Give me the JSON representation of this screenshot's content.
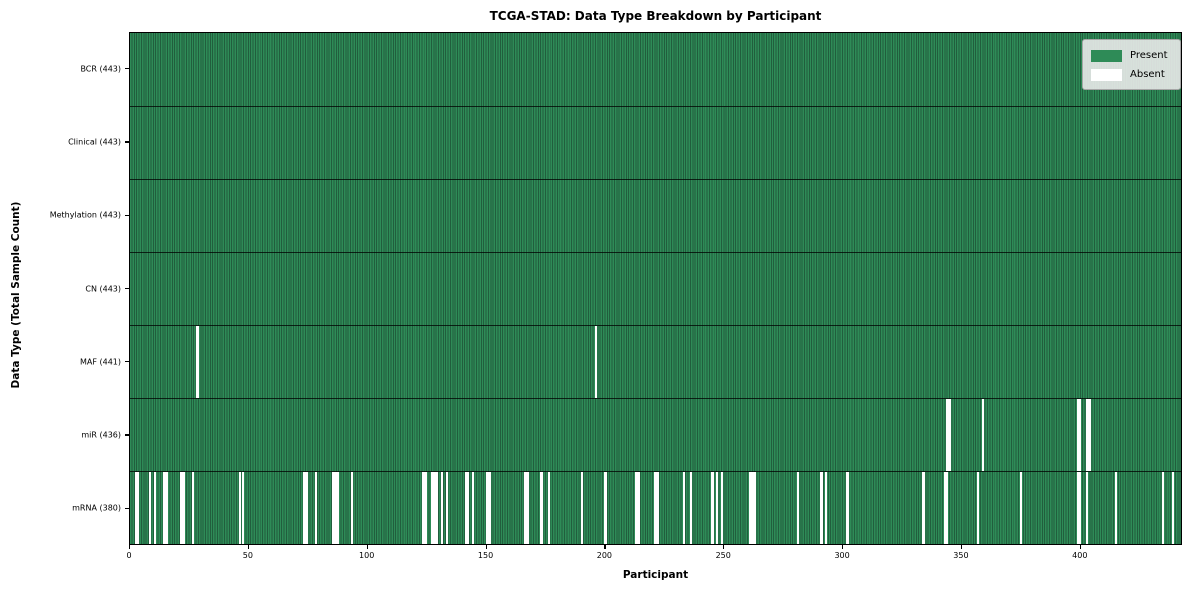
{
  "title": "TCGA-STAD: Data Type Breakdown by Participant",
  "xlabel": "Participant",
  "ylabel": "Data Type (Total Sample Count)",
  "legend": {
    "present_label": "Present",
    "absent_label": "Absent"
  },
  "colors": {
    "present": "#2e8b57",
    "present_cell_edge": "#215e3d",
    "absent": "#ffffff",
    "row_divider": "#10301c",
    "plot_border": "#000000",
    "legend_bg": "#eaeaea",
    "legend_border": "#a6a6a6"
  },
  "chart_data": {
    "type": "heatmap",
    "title": "TCGA-STAD: Data Type Breakdown by Participant",
    "xlabel": "Participant",
    "ylabel": "Data Type (Total Sample Count)",
    "n_participants": 443,
    "x_range": [
      0,
      443
    ],
    "x_ticks": [
      0,
      50,
      100,
      150,
      200,
      250,
      300,
      350,
      400
    ],
    "grid": false,
    "legend_position": "upper right",
    "legend": [
      {
        "label": "Present",
        "color": "#2e8b57"
      },
      {
        "label": "Absent",
        "color": "#ffffff"
      }
    ],
    "rows": [
      {
        "label": "BCR (443)",
        "data_type": "BCR",
        "present_count": 443,
        "absent_participants": []
      },
      {
        "label": "Clinical (443)",
        "data_type": "Clinical",
        "present_count": 443,
        "absent_participants": []
      },
      {
        "label": "Methylation (443)",
        "data_type": "Methylation",
        "present_count": 443,
        "absent_participants": []
      },
      {
        "label": "CN (443)",
        "data_type": "CN",
        "present_count": 443,
        "absent_participants": []
      },
      {
        "label": "MAF (441)",
        "data_type": "MAF",
        "present_count": 441,
        "absent_participants": [
          28,
          196
        ]
      },
      {
        "label": "miR (436)",
        "data_type": "miR",
        "present_count": 436,
        "absent_participants": [
          344,
          345,
          359,
          399,
          400,
          403,
          404
        ]
      },
      {
        "label": "mRNA (380)",
        "data_type": "mRNA",
        "present_count": 380,
        "absent_participants": [
          2,
          3,
          8,
          10,
          14,
          15,
          21,
          22,
          26,
          46,
          47,
          73,
          74,
          78,
          85,
          86,
          87,
          93,
          123,
          124,
          127,
          128,
          129,
          131,
          133,
          141,
          142,
          144,
          150,
          151,
          166,
          167,
          173,
          176,
          190,
          200,
          213,
          214,
          221,
          222,
          233,
          236,
          245,
          247,
          249,
          261,
          262,
          263,
          281,
          291,
          293,
          302,
          334,
          343,
          344,
          357,
          375,
          399,
          400,
          403,
          415,
          435,
          439
        ]
      }
    ]
  }
}
